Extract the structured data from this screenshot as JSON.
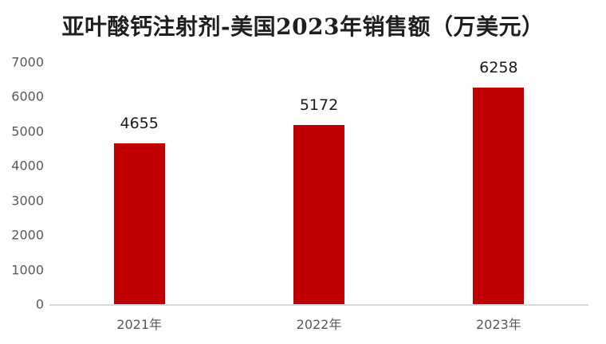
{
  "title": "亚叶酸钙注射剂-美国2023年销售额（万美元）",
  "colors": {
    "bar": "#C00000",
    "title_text": "#1F1F1F",
    "axis_tick_labels": "#595959",
    "axis_line": "#D9D9D9",
    "value_labels": "#1A1A1A",
    "background": "#FFFFFF"
  },
  "chart_data": {
    "type": "bar",
    "categories": [
      "2021年",
      "2022年",
      "2023年"
    ],
    "values": [
      4655,
      5172,
      6258
    ],
    "value_labels": [
      "4655",
      "5172",
      "6258"
    ],
    "title": "亚叶酸钙注射剂-美国2023年销售额（万美元）",
    "xlabel": "",
    "ylabel": "",
    "ylim": [
      0,
      7000
    ],
    "yticks": [
      0,
      1000,
      2000,
      3000,
      4000,
      5000,
      6000,
      7000
    ],
    "grid": false,
    "legend_position": "none",
    "data_labels_shown": true
  }
}
